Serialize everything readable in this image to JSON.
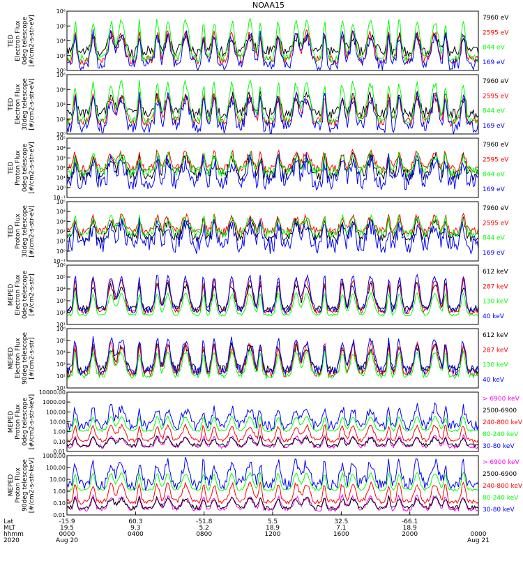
{
  "chart_data": {
    "type": "line",
    "title": "NOAA15",
    "x_labels": [
      "Aug 20",
      "0400",
      "0800",
      "1200",
      "1600",
      "2000",
      "Aug 21"
    ],
    "panels": [
      {
        "name": "ted-electron-0deg",
        "ylabel": [
          "TED",
          "Electron Flux",
          "0deg telescope",
          "[#/cm2-s-str-eV]"
        ],
        "ylim_exp": [
          0,
          8
        ],
        "yticks": [
          "10⁰",
          "10²",
          "10⁴",
          "10⁶",
          "10⁸"
        ],
        "legend": [
          {
            "text": "7960 eV",
            "color": "#000000"
          },
          {
            "text": "2595 eV",
            "color": "#ff0000"
          },
          {
            "text": "844 eV",
            "color": "#00ff00"
          },
          {
            "text": "169 eV",
            "color": "#0000ff"
          }
        ],
        "series": [
          {
            "base": 2.6,
            "amp": 2.0,
            "noise": 0.7
          },
          {
            "base": 1.4,
            "amp": 3.5,
            "noise": 0.6
          },
          {
            "base": 1.6,
            "amp": 5.0,
            "noise": 0.5
          },
          {
            "base": 0.8,
            "amp": 4.0,
            "noise": 0.8
          }
        ]
      },
      {
        "name": "ted-electron-30deg",
        "ylabel": [
          "TED",
          "Electron Flux",
          "30deg telescope",
          "[#/cm2-s-str-eV]"
        ],
        "ylim_exp": [
          0,
          8
        ],
        "yticks": [
          "10⁰",
          "10²",
          "10⁴",
          "10⁶",
          "10⁸"
        ],
        "legend": [
          {
            "text": "7960 eV",
            "color": "#000000"
          },
          {
            "text": "2595 eV",
            "color": "#ff0000"
          },
          {
            "text": "844 eV",
            "color": "#00ff00"
          },
          {
            "text": "169 eV",
            "color": "#0000ff"
          }
        ],
        "series": [
          {
            "base": 2.8,
            "amp": 2.2,
            "noise": 0.8
          },
          {
            "base": 1.6,
            "amp": 3.5,
            "noise": 0.6
          },
          {
            "base": 1.8,
            "amp": 5.0,
            "noise": 0.5
          },
          {
            "base": 0.9,
            "amp": 4.0,
            "noise": 0.9
          }
        ]
      },
      {
        "name": "ted-proton-0deg",
        "ylabel": [
          "TED",
          "Proton Flux",
          "0deg telescope",
          "[#/cm2-s-str-eV]"
        ],
        "ylim_exp": [
          -1,
          5
        ],
        "yticks": [
          "10⁻¹",
          "10⁰",
          "10¹",
          "10²",
          "10³",
          "10⁴",
          "10⁵"
        ],
        "legend": [
          {
            "text": "7960 eV",
            "color": "#000000"
          },
          {
            "text": "2595 eV",
            "color": "#ff0000"
          },
          {
            "text": "844 eV",
            "color": "#00ff00"
          },
          {
            "text": "169 eV",
            "color": "#0000ff"
          }
        ],
        "series": [
          {
            "base": 1.3,
            "amp": 1.8,
            "noise": 0.6
          },
          {
            "base": 1.9,
            "amp": 1.6,
            "noise": 0.4
          },
          {
            "base": 1.6,
            "amp": 1.6,
            "noise": 0.5
          },
          {
            "base": 0.6,
            "amp": 2.0,
            "noise": 0.9
          }
        ]
      },
      {
        "name": "ted-proton-30deg",
        "ylabel": [
          "TED",
          "Proton Flux",
          "30deg telescope",
          "[#/cm2-s-str-eV]"
        ],
        "ylim_exp": [
          -1,
          5
        ],
        "yticks": [
          "10⁻¹",
          "10⁰",
          "10¹",
          "10²",
          "10³",
          "10⁴",
          "10⁵"
        ],
        "legend": [
          {
            "text": "7960 eV",
            "color": "#000000"
          },
          {
            "text": "2595 eV",
            "color": "#ff0000"
          },
          {
            "text": "844 eV",
            "color": "#00ff00"
          },
          {
            "text": "169 eV",
            "color": "#0000ff"
          }
        ],
        "series": [
          {
            "base": 1.4,
            "amp": 1.6,
            "noise": 0.5
          },
          {
            "base": 2.0,
            "amp": 1.4,
            "noise": 0.4
          },
          {
            "base": 1.8,
            "amp": 1.5,
            "noise": 0.4
          },
          {
            "base": 0.6,
            "amp": 2.0,
            "noise": 0.9
          }
        ]
      },
      {
        "name": "meped-electron-0deg",
        "ylabel": [
          "MEPED",
          "Electron Flux",
          "0deg telescope",
          "[#/cm2-s-str]"
        ],
        "ylim_exp": [
          1,
          6
        ],
        "yticks": [
          "10¹",
          "10²",
          "10³",
          "10⁴",
          "10⁵",
          "10⁶"
        ],
        "legend": [
          {
            "text": "612 keV",
            "color": "#000000"
          },
          {
            "text": "287 keV",
            "color": "#ff0000"
          },
          {
            "text": "130 keV",
            "color": "#00ff00"
          },
          {
            "text": "40 keV",
            "color": "#0000ff"
          }
        ],
        "series": [
          {
            "base": 2.3,
            "amp": 2.0,
            "noise": 0.3
          },
          {
            "base": 2.1,
            "amp": 2.6,
            "noise": 0.2
          },
          {
            "base": 1.8,
            "amp": 1.8,
            "noise": 0.1
          },
          {
            "base": 2.2,
            "amp": 2.8,
            "noise": 0.3
          }
        ]
      },
      {
        "name": "meped-electron-90deg",
        "ylabel": [
          "MEPED",
          "Electron Flux",
          "90deg telescope",
          "[#/cm2-s-str]"
        ],
        "ylim_exp": [
          1,
          6
        ],
        "yticks": [
          "10¹",
          "10²",
          "10³",
          "10⁴",
          "10⁵",
          "10⁶"
        ],
        "legend": [
          {
            "text": "612 keV",
            "color": "#000000"
          },
          {
            "text": "287 keV",
            "color": "#ff0000"
          },
          {
            "text": "130 keV",
            "color": "#00ff00"
          },
          {
            "text": "40 keV",
            "color": "#0000ff"
          }
        ],
        "series": [
          {
            "base": 2.5,
            "amp": 2.0,
            "noise": 0.4
          },
          {
            "base": 2.2,
            "amp": 2.4,
            "noise": 0.3
          },
          {
            "base": 2.0,
            "amp": 2.0,
            "noise": 0.2
          },
          {
            "base": 2.5,
            "amp": 2.5,
            "noise": 0.4
          }
        ]
      },
      {
        "name": "meped-proton-0deg",
        "ylabel": [
          "MEPED",
          "Proton Flux",
          "0deg telescope",
          "[#/cm2-s-str-keV]"
        ],
        "ylim_exp": [
          -2,
          4
        ],
        "yticks": [
          "0.01",
          "0.10",
          "1.00",
          "10.00",
          "100.00",
          "1000.00",
          "10000.00"
        ],
        "legend": [
          {
            "text": "> 6900 keV",
            "color": "#ff00ff"
          },
          {
            "text": "2500-6900",
            "color": "#000000"
          },
          {
            "text": "240-800 keV",
            "color": "#ff0000"
          },
          {
            "text": "80-240 keV",
            "color": "#00ff00"
          },
          {
            "text": "30-80 keV",
            "color": "#0000ff"
          }
        ],
        "series": [
          {
            "base": -1.5,
            "amp": 1.0,
            "noise": 0.2
          },
          {
            "base": -1.4,
            "amp": 0.8,
            "noise": 0.2
          },
          {
            "base": -0.9,
            "amp": 1.5,
            "noise": 0.2
          },
          {
            "base": 0.1,
            "amp": 1.4,
            "noise": 0.1
          },
          {
            "base": 0.6,
            "amp": 1.8,
            "noise": 0.5
          }
        ]
      },
      {
        "name": "meped-proton-90deg",
        "ylabel": [
          "MEPED",
          "Proton Flux",
          "90deg telescope",
          "[#/cm2-s-str-keV]"
        ],
        "ylim_exp": [
          -2,
          3
        ],
        "yticks": [
          "0.01",
          "0.10",
          "1.00",
          "10.00",
          "100.00",
          "1000.00"
        ],
        "legend": [
          {
            "text": "> 6900 keV",
            "color": "#ff00ff"
          },
          {
            "text": "2500-6900",
            "color": "#000000"
          },
          {
            "text": "240-800 keV",
            "color": "#ff0000"
          },
          {
            "text": "80-240 keV",
            "color": "#00ff00"
          },
          {
            "text": "30-80 keV",
            "color": "#0000ff"
          }
        ],
        "series": [
          {
            "base": -1.5,
            "amp": 1.0,
            "noise": 0.2
          },
          {
            "base": -1.4,
            "amp": 0.8,
            "noise": 0.2
          },
          {
            "base": -0.9,
            "amp": 1.5,
            "noise": 0.2
          },
          {
            "base": 0.1,
            "amp": 1.4,
            "noise": 0.1
          },
          {
            "base": 0.6,
            "amp": 1.8,
            "noise": 0.5
          }
        ]
      }
    ],
    "footer": {
      "row_labels": [
        "Lat",
        "MLT",
        "hhmm",
        "2020"
      ],
      "lat": [
        "-15.9",
        "60.3",
        "-51.8",
        "5.5",
        "32.5",
        "-66.1"
      ],
      "mlt": [
        "19.5",
        "9.3",
        "5.2",
        "18.9",
        "7.1",
        "18.9"
      ],
      "hhmm": [
        "0000",
        "0400",
        "0800",
        "1200",
        "1600",
        "2000",
        "0000"
      ],
      "dates": [
        "Aug 20",
        "Aug 21"
      ]
    }
  }
}
